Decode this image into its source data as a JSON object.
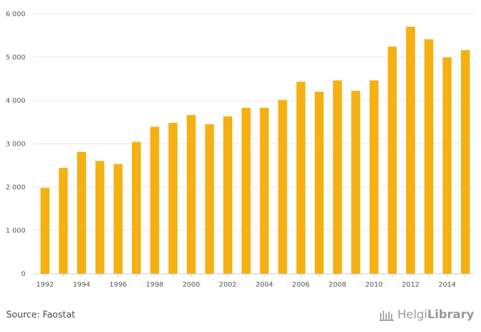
{
  "chart_data": {
    "type": "bar",
    "categories": [
      "1992",
      "1993",
      "1994",
      "1995",
      "1996",
      "1997",
      "1998",
      "1999",
      "2000",
      "2001",
      "2002",
      "2003",
      "2004",
      "2005",
      "2006",
      "2007",
      "2008",
      "2009",
      "2010",
      "2011",
      "2012",
      "2013",
      "2014",
      "2015"
    ],
    "values": [
      1980,
      2440,
      2810,
      2600,
      2530,
      3040,
      3390,
      3480,
      3660,
      3450,
      3630,
      3830,
      3830,
      4010,
      4430,
      4200,
      4460,
      4220,
      4460,
      5240,
      5700,
      5410,
      4990,
      5160
    ],
    "x_tick_labels": [
      "1992",
      "1994",
      "1996",
      "1998",
      "2000",
      "2002",
      "2004",
      "2006",
      "2008",
      "2010",
      "2012",
      "2014"
    ],
    "y_tick_labels": [
      "0",
      "1 000",
      "2 000",
      "3 000",
      "4 000",
      "5 000",
      "6 000"
    ],
    "y_ticks": [
      0,
      1000,
      2000,
      3000,
      4000,
      5000,
      6000
    ],
    "ylim": [
      0,
      6000
    ],
    "grid": true,
    "bar_color": "#f5b111"
  },
  "footer": {
    "source": "Source: Faostat",
    "brand_a": "Helgi",
    "brand_b": "Library"
  }
}
